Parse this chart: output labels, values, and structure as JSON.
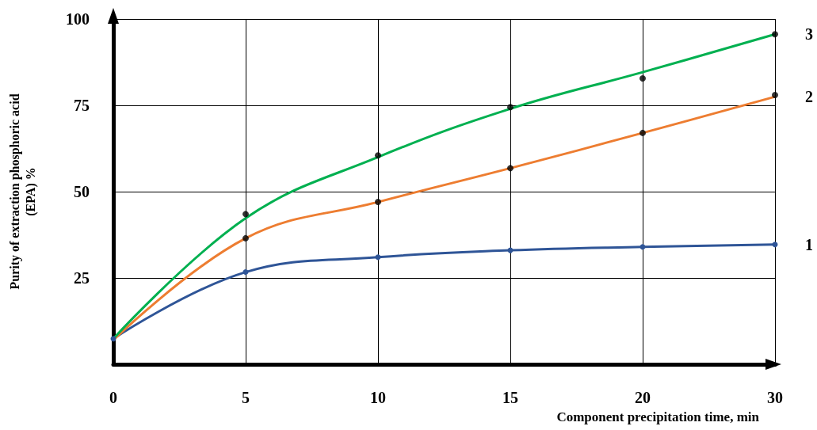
{
  "chart_data": {
    "type": "line",
    "xlabel": "Component precipitation time, min",
    "ylabel": "Purity of extraction phosphoric acid\n(EPA) %",
    "categories": [
      "0",
      "5",
      "10",
      "15",
      "20",
      "30"
    ],
    "series": [
      {
        "name": "1",
        "color": "#2f5597",
        "marker": "circle",
        "values": [
          7.4,
          26.7,
          31,
          33,
          34,
          34.7
        ]
      },
      {
        "name": "2",
        "color": "#ed7d31",
        "marker": "none",
        "values": [
          7,
          36.5,
          47,
          56.8,
          67,
          77.5
        ]
      },
      {
        "name": "3",
        "color": "#00b050",
        "marker": "none",
        "values": [
          7.4,
          42.3,
          60,
          74,
          84.6,
          95.6
        ]
      },
      {
        "type": "scatter",
        "color": "#000000",
        "marker": "circle",
        "x": [
          "5",
          "10",
          "15",
          "20",
          "30"
        ],
        "values": [
          36.5,
          47,
          56.8,
          67,
          78
        ]
      },
      {
        "type": "scatter",
        "color": "#000000",
        "marker": "circle",
        "x": [
          "5",
          "10",
          "15",
          "20",
          "30"
        ],
        "values": [
          43.5,
          60.5,
          74.5,
          82.8,
          95.6
        ]
      }
    ],
    "ylim": [
      0,
      100
    ],
    "yticks": [
      25,
      50,
      75,
      100
    ],
    "grid": true,
    "legend": false
  }
}
